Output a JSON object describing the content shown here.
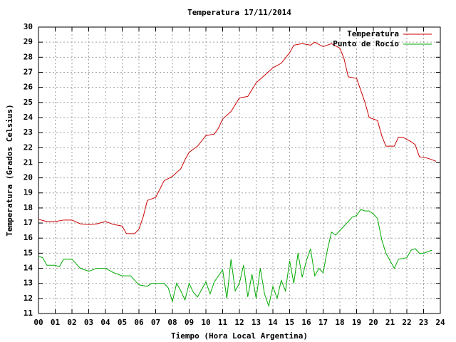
{
  "chart_data": {
    "type": "line",
    "title": "Temperatura 17/11/2014",
    "x_label": "Tiempo (Hora Local Argentina)",
    "y_label": "Temperatura (Grados Celsius)",
    "xlim": [
      0,
      24
    ],
    "ylim": [
      11,
      30
    ],
    "xticks": [
      {
        "value": 0,
        "label": "00"
      },
      {
        "value": 1,
        "label": "01"
      },
      {
        "value": 2,
        "label": "02"
      },
      {
        "value": 3,
        "label": "03"
      },
      {
        "value": 4,
        "label": "04"
      },
      {
        "value": 5,
        "label": "05"
      },
      {
        "value": 6,
        "label": "06"
      },
      {
        "value": 7,
        "label": "07"
      },
      {
        "value": 8,
        "label": "08"
      },
      {
        "value": 9,
        "label": "09"
      },
      {
        "value": 10,
        "label": "10"
      },
      {
        "value": 11,
        "label": "11"
      },
      {
        "value": 12,
        "label": "12"
      },
      {
        "value": 13,
        "label": "13"
      },
      {
        "value": 14,
        "label": "14"
      },
      {
        "value": 15,
        "label": "15"
      },
      {
        "value": 16,
        "label": "16"
      },
      {
        "value": 17,
        "label": "17"
      },
      {
        "value": 18,
        "label": "18"
      },
      {
        "value": 19,
        "label": "19"
      },
      {
        "value": 20,
        "label": "20"
      },
      {
        "value": 21,
        "label": "21"
      },
      {
        "value": 22,
        "label": "22"
      },
      {
        "value": 23,
        "label": "23"
      },
      {
        "value": 24,
        "label": "24"
      }
    ],
    "yticks": [
      11,
      12,
      13,
      14,
      15,
      16,
      17,
      18,
      19,
      20,
      21,
      22,
      23,
      24,
      25,
      26,
      27,
      28,
      29,
      30
    ],
    "grid": true,
    "legend": "top-right",
    "series": [
      {
        "name": "Temperatura",
        "color": "#cc0000",
        "x": [
          0,
          0.5,
          1,
          1.5,
          2,
          2.5,
          3,
          3.5,
          4,
          4.5,
          5,
          5.25,
          5.75,
          6,
          6.25,
          6.5,
          7,
          7.5,
          8,
          8.5,
          8.75,
          9,
          9.5,
          10,
          10.5,
          10.75,
          11,
          11.5,
          12,
          12.5,
          13,
          13.5,
          14,
          14.5,
          15,
          15.25,
          15.75,
          16.25,
          16.5,
          17,
          17.5,
          18,
          18.25,
          18.5,
          19,
          19.5,
          19.75,
          20.25,
          20.5,
          20.75,
          21.25,
          21.5,
          21.75,
          22.25,
          22.5,
          22.75,
          23.25,
          23.5,
          23.75
        ],
        "values": [
          17.25,
          17.1,
          17.1,
          17.2,
          17.2,
          16.95,
          16.9,
          16.95,
          17.1,
          16.9,
          16.8,
          16.3,
          16.3,
          16.6,
          17.4,
          18.5,
          18.7,
          19.8,
          20.1,
          20.6,
          21.2,
          21.7,
          22.1,
          22.8,
          22.9,
          23.3,
          23.9,
          24.4,
          25.3,
          25.4,
          26.3,
          26.8,
          27.3,
          27.6,
          28.3,
          28.8,
          28.9,
          28.8,
          29.0,
          28.7,
          28.9,
          28.6,
          27.9,
          26.7,
          26.6,
          25.0,
          24.0,
          23.8,
          22.8,
          22.1,
          22.1,
          22.7,
          22.7,
          22.4,
          22.2,
          21.4,
          21.3,
          21.2,
          21.1
        ]
      },
      {
        "name": "Punto de Rocío",
        "color": "#00aa00",
        "x": [
          0,
          0.25,
          0.5,
          1,
          1.25,
          1.5,
          2,
          2.25,
          2.5,
          3,
          3.5,
          4,
          4.5,
          5,
          5.5,
          5.75,
          6,
          6.5,
          6.75,
          7,
          7.5,
          7.75,
          8,
          8.25,
          8.5,
          8.75,
          9,
          9.25,
          9.5,
          10,
          10.25,
          10.5,
          11,
          11.25,
          11.5,
          11.75,
          12,
          12.25,
          12.5,
          12.75,
          13,
          13.25,
          13.5,
          13.75,
          14,
          14.25,
          14.5,
          14.75,
          15,
          15.25,
          15.5,
          15.75,
          16,
          16.25,
          16.5,
          16.75,
          17,
          17.25,
          17.5,
          17.75,
          18,
          18.5,
          18.75,
          19,
          19.25,
          19.5,
          19.75,
          20,
          20.25,
          20.5,
          20.75,
          21,
          21.25,
          21.5,
          22,
          22.25,
          22.5,
          22.75,
          23,
          23.25,
          23.5
        ],
        "values": [
          14.8,
          14.7,
          14.2,
          14.2,
          14.1,
          14.6,
          14.6,
          14.3,
          14.0,
          13.8,
          14.0,
          14.0,
          13.7,
          13.5,
          13.5,
          13.2,
          12.9,
          12.8,
          13.0,
          13.0,
          13.0,
          12.7,
          11.8,
          13.0,
          12.5,
          11.9,
          13.0,
          12.4,
          12.1,
          13.1,
          12.3,
          13.1,
          13.9,
          12.0,
          14.6,
          12.5,
          13.0,
          14.2,
          12.1,
          13.6,
          12.0,
          14.0,
          12.3,
          11.5,
          12.8,
          12.0,
          13.2,
          12.5,
          14.5,
          13.0,
          15.0,
          13.4,
          14.5,
          15.3,
          13.5,
          14.0,
          13.7,
          15.2,
          16.4,
          16.2,
          16.5,
          17.1,
          17.4,
          17.5,
          17.9,
          17.8,
          17.8,
          17.6,
          17.3,
          15.9,
          15.0,
          14.5,
          14.0,
          14.6,
          14.7,
          15.2,
          15.3,
          15.0,
          15.0,
          15.1,
          15.2
        ]
      }
    ]
  }
}
